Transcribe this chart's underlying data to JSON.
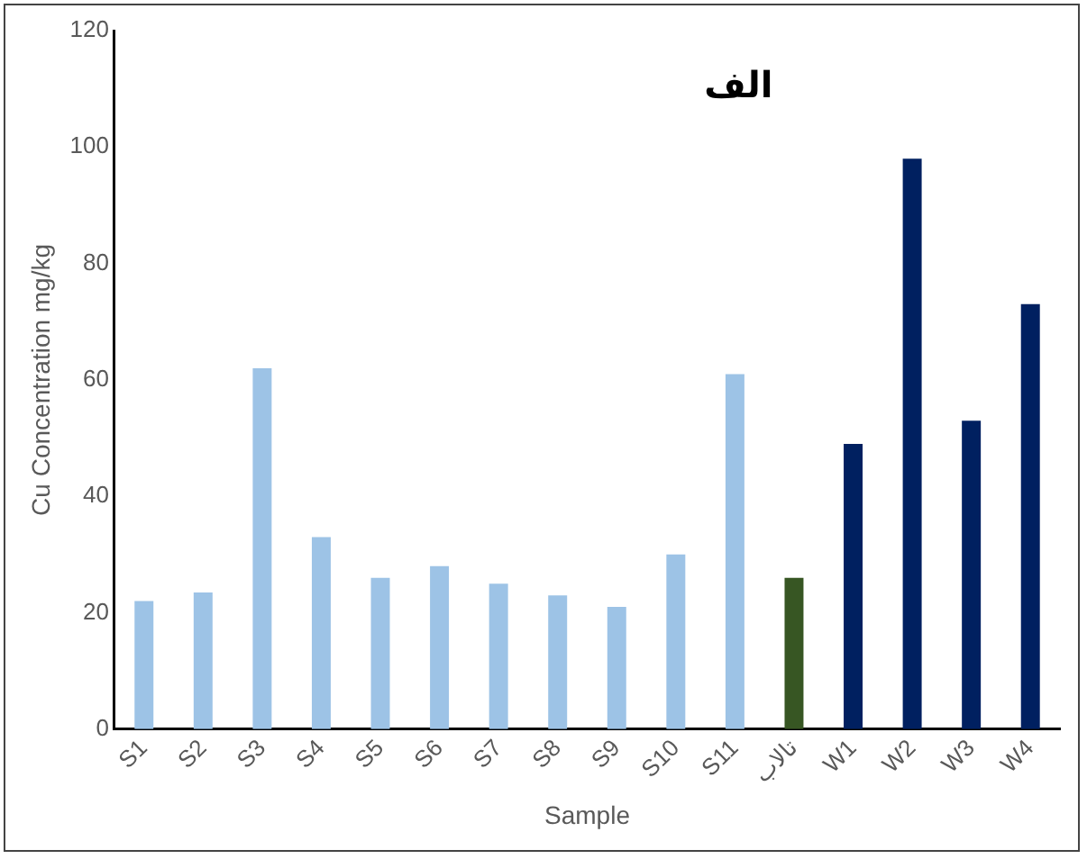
{
  "chart_data": {
    "type": "bar",
    "title": "الف",
    "xlabel": "Sample",
    "ylabel": "Cu Concentration mg/kg",
    "categories": [
      "S1",
      "S2",
      "S3",
      "S4",
      "S5",
      "S6",
      "S7",
      "S8",
      "S9",
      "S10",
      "S11",
      "تالاب",
      "W1",
      "W2",
      "W3",
      "W4"
    ],
    "values": [
      22,
      23.5,
      62,
      33,
      26,
      28,
      25,
      23,
      21,
      30,
      61,
      26,
      49,
      98,
      53,
      73
    ],
    "colors": [
      "#9dc3e6",
      "#9dc3e6",
      "#9dc3e6",
      "#9dc3e6",
      "#9dc3e6",
      "#9dc3e6",
      "#9dc3e6",
      "#9dc3e6",
      "#9dc3e6",
      "#9dc3e6",
      "#9dc3e6",
      "#375623",
      "#002060",
      "#002060",
      "#002060",
      "#002060"
    ],
    "ylim": [
      0,
      120
    ],
    "yticks": [
      0,
      20,
      40,
      60,
      80,
      100,
      120
    ],
    "grid": false,
    "legend": false
  }
}
